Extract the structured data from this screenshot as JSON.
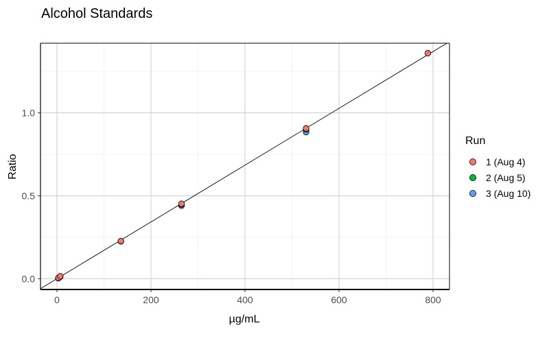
{
  "chart_data": {
    "type": "scatter",
    "title": "Alcohol Standards",
    "xlabel": "µg/mL",
    "ylabel": "Ratio",
    "xlim": [
      -35,
      835
    ],
    "ylim": [
      -0.065,
      1.42
    ],
    "xticks": [
      0,
      200,
      400,
      600,
      800
    ],
    "xtick_labels": [
      "0",
      "200",
      "400",
      "600",
      "800"
    ],
    "yticks": [
      0.0,
      0.5,
      1.0
    ],
    "ytick_labels": [
      "0.0",
      "0.5",
      "1.0"
    ],
    "grid": true,
    "legend": {
      "title": "Run",
      "position": "right"
    },
    "series": [
      {
        "name": "1 (Aug 4)",
        "color": "#F8766D",
        "points": [
          [
            3,
            0.005
          ],
          [
            7,
            0.015
          ],
          [
            136,
            0.227
          ],
          [
            265,
            0.452
          ],
          [
            530,
            0.907
          ],
          [
            789,
            1.36
          ]
        ]
      },
      {
        "name": "2 (Aug 5)",
        "color": "#00BA38",
        "points": [
          [
            3,
            0.004
          ],
          [
            7,
            0.013
          ],
          [
            136,
            0.226
          ],
          [
            265,
            0.448
          ],
          [
            530,
            0.9
          ]
        ]
      },
      {
        "name": "3 (Aug 10)",
        "color": "#619CFF",
        "points": [
          [
            3,
            0.003
          ],
          [
            7,
            0.012
          ],
          [
            136,
            0.225
          ],
          [
            265,
            0.44
          ],
          [
            530,
            0.884
          ]
        ]
      }
    ],
    "fit_line": {
      "slope": 0.001712,
      "intercept": 0.0,
      "color": "#000000"
    }
  }
}
